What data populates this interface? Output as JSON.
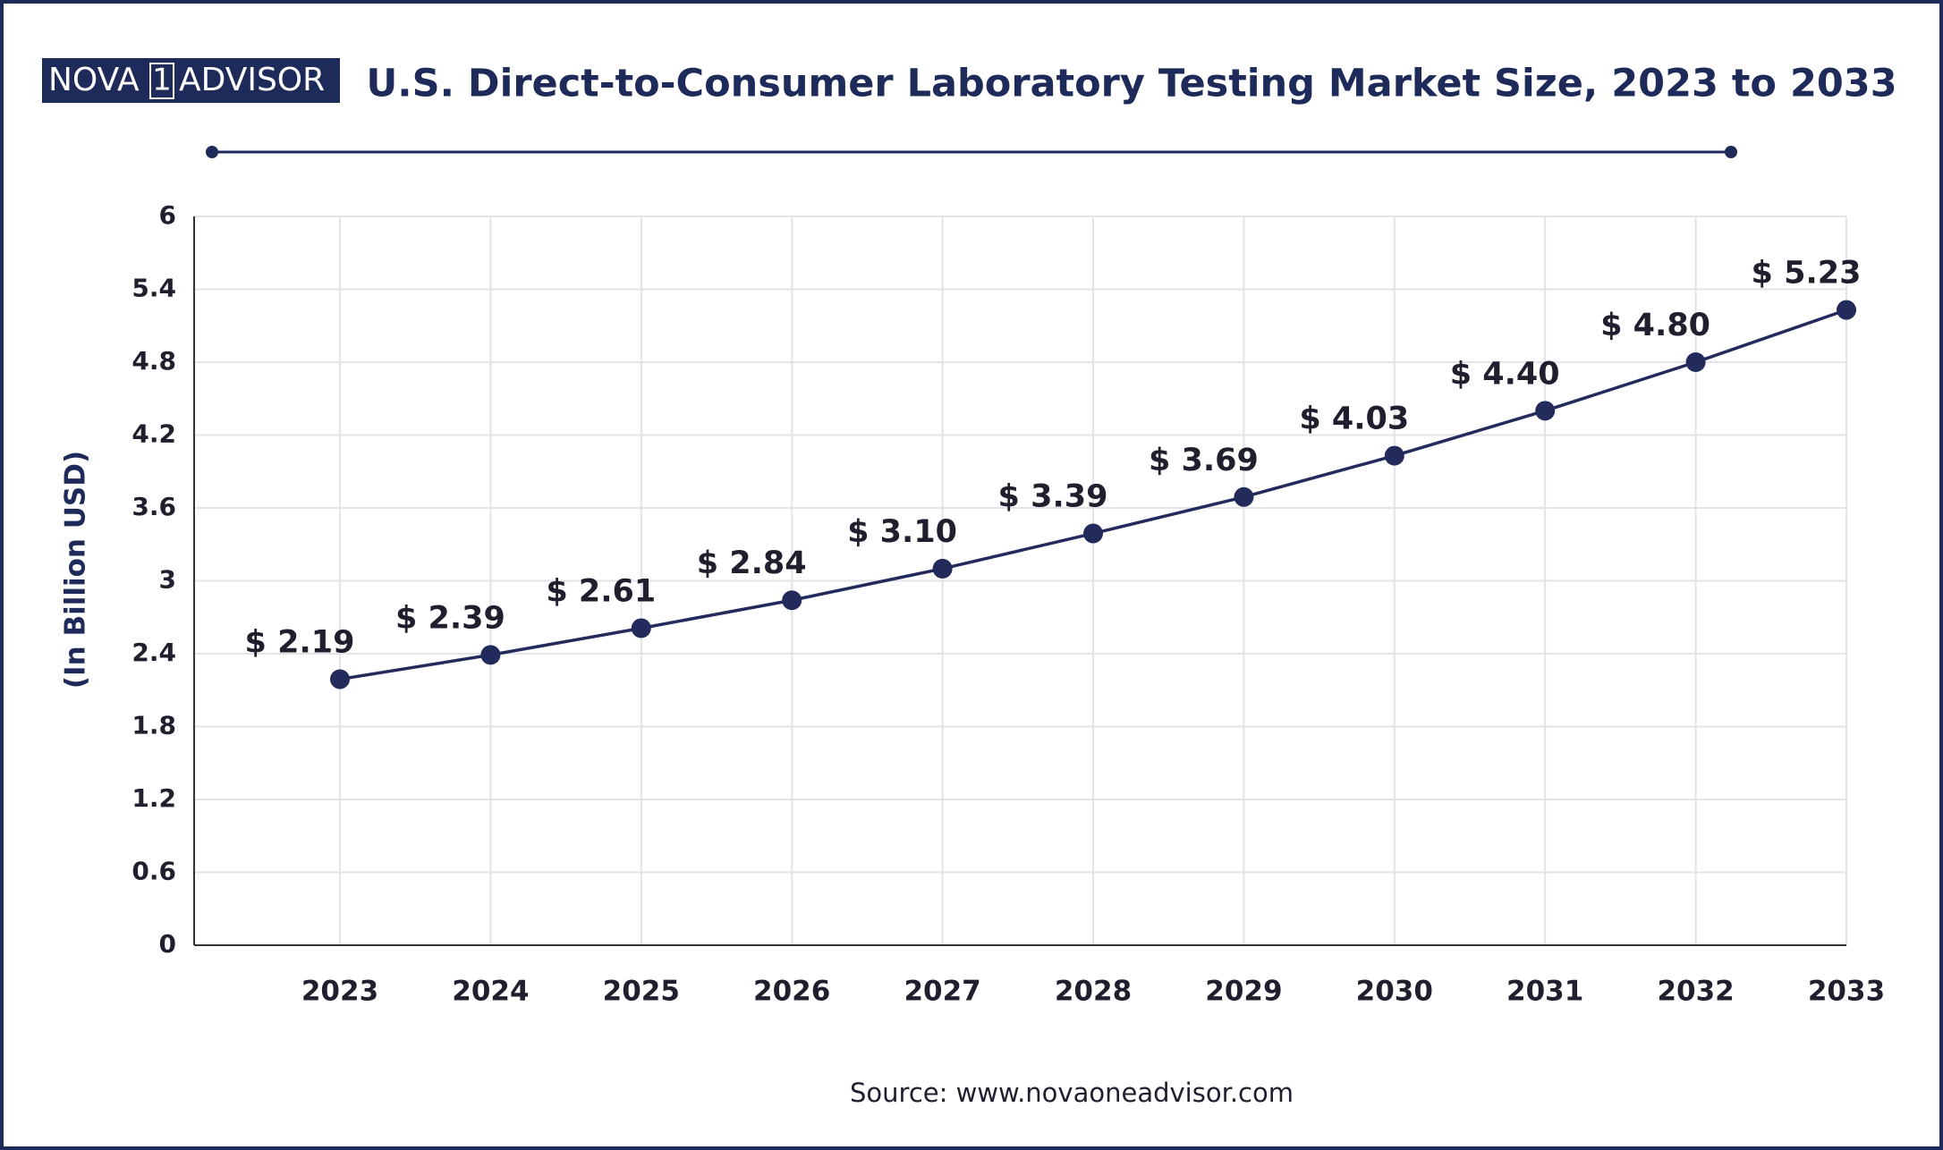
{
  "logo": {
    "left": "NOVA",
    "mark": "1",
    "right": "ADVISOR"
  },
  "chart_data": {
    "type": "line",
    "title": "U.S. Direct-to-Consumer Laboratory Testing Market Size, 2023 to 2033",
    "y_label": "(In Billion USD)",
    "source": "Source: www.novaoneadvisor.com",
    "categories": [
      "2023",
      "2024",
      "2025",
      "2026",
      "2027",
      "2028",
      "2029",
      "2030",
      "2031",
      "2032",
      "2033"
    ],
    "values": [
      2.19,
      2.39,
      2.61,
      2.84,
      3.1,
      3.39,
      3.69,
      4.03,
      4.4,
      4.8,
      5.23
    ],
    "value_labels": [
      "$ 2.19",
      "$ 2.39",
      "$ 2.61",
      "$ 2.84",
      "$ 3.10",
      "$ 3.39",
      "$ 3.69",
      "$ 4.03",
      "$ 4.40",
      "$ 4.80",
      "$ 5.23"
    ],
    "color": "#232a5c",
    "ylim": [
      0,
      6
    ],
    "yticks": [
      0,
      0.6,
      1.2,
      1.8,
      2.4,
      3,
      3.6,
      4.2,
      4.8,
      5.4,
      6
    ],
    "grid": true
  }
}
